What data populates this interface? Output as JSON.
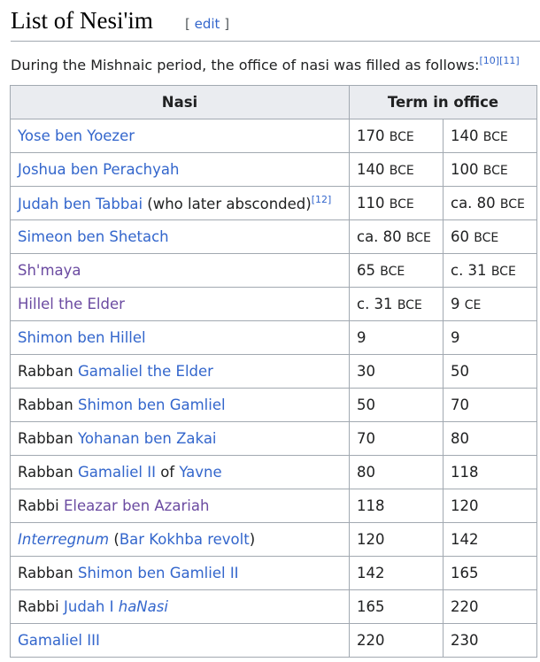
{
  "heading": {
    "title": "List of Nesi'im",
    "edit_open": "[ ",
    "edit_label": "edit",
    "edit_close": " ]"
  },
  "intro": {
    "text": "During the Mishnaic period, the office of nasi was filled as follows:",
    "refs": "[10][11]"
  },
  "table": {
    "headers": {
      "nasi": "Nasi",
      "term": "Term in office"
    },
    "rows": [
      {
        "prefix": "",
        "name": "Yose ben Yoezer",
        "suffix": "",
        "start": "170",
        "start_era": "BCE",
        "end": "140",
        "end_era": "BCE"
      },
      {
        "prefix": "",
        "name": "Joshua ben Perachyah",
        "suffix": "",
        "start": "140",
        "start_era": "BCE",
        "end": "100",
        "end_era": "BCE"
      },
      {
        "prefix": "",
        "name": "Judah ben Tabbai",
        "suffix": " (who later absconded)",
        "ref": "[12]",
        "start": "110",
        "start_era": "BCE",
        "end": "ca. 80",
        "end_era": "BCE"
      },
      {
        "prefix": "",
        "name": "Simeon ben Shetach",
        "suffix": "",
        "start": "ca. 80",
        "start_era": "BCE",
        "end": "60",
        "end_era": "BCE"
      },
      {
        "prefix": "",
        "name": "Sh'maya",
        "suffix": "",
        "start": "65",
        "start_era": "BCE",
        "end": "c. 31",
        "end_era": "BCE"
      },
      {
        "prefix": "",
        "name": "Hillel the Elder",
        "suffix": "",
        "start": "c. 31",
        "start_era": "BCE",
        "end": "9",
        "end_era": "CE"
      },
      {
        "prefix": "",
        "name": "Shimon ben Hillel",
        "suffix": "",
        "start": "9",
        "end": "9"
      },
      {
        "prefix": "Rabban ",
        "name": "Gamaliel the Elder",
        "suffix": "",
        "start": "30",
        "end": "50"
      },
      {
        "prefix": "Rabban ",
        "name": "Shimon ben Gamliel",
        "suffix": "",
        "start": "50",
        "end": "70"
      },
      {
        "prefix": "Rabban ",
        "name": "Yohanan ben Zakai",
        "suffix": "",
        "start": "70",
        "end": "80"
      },
      {
        "prefix": "Rabban ",
        "name": "Gamaliel II",
        "mid": " of ",
        "place": "Yavne",
        "start": "80",
        "end": "118"
      },
      {
        "prefix": "Rabbi ",
        "name": "Eleazar ben Azariah",
        "suffix": "",
        "start": "118",
        "end": "120"
      },
      {
        "prefix": "",
        "name": "Interregnum",
        "suffix_open": " (",
        "event": "Bar Kokhba revolt",
        "suffix_close": ")",
        "start": "120",
        "end": "142"
      },
      {
        "prefix": "Rabban ",
        "name": "Shimon ben Gamliel II",
        "suffix": "",
        "start": "142",
        "end": "165"
      },
      {
        "prefix": "Rabbi ",
        "name": "Judah I ",
        "name2": "haNasi",
        "suffix": "",
        "start": "165",
        "end": "220"
      },
      {
        "prefix": "",
        "name": "Gamaliel III",
        "suffix": "",
        "start": "220",
        "end": "230"
      }
    ]
  },
  "colors": {
    "link": "#3366cc",
    "visited_link": "#6b4ba1",
    "border": "#a2a9b1",
    "header_bg": "#eaecf0",
    "text": "#202122"
  }
}
